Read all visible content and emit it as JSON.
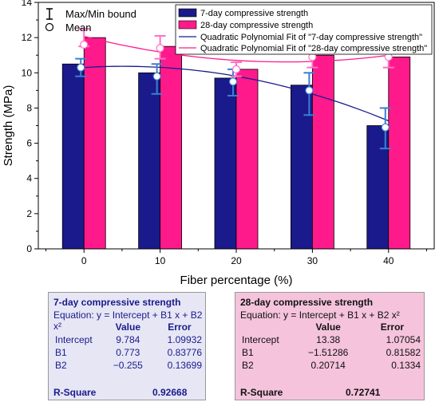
{
  "chart_data": {
    "type": "bar",
    "xlabel": "Fiber percentage (%)",
    "ylabel": "Strength (MPa)",
    "categories": [
      "0",
      "10",
      "20",
      "30",
      "40"
    ],
    "x": [
      0,
      10,
      20,
      30,
      40
    ],
    "ylim": [
      0,
      14
    ],
    "yticks": [
      "0",
      "2",
      "4",
      "6",
      "8",
      "10",
      "12",
      "14"
    ],
    "grid": false,
    "legend_position": "top-right",
    "legend_errorbar": [
      "Max/Min bound",
      "Mean"
    ],
    "series": [
      {
        "name": "7-day compressive strength",
        "color": "#1a1a8c",
        "values": [
          10.5,
          10.0,
          9.7,
          9.3,
          7.0
        ],
        "mean": [
          10.3,
          9.8,
          9.5,
          9.0,
          6.9
        ],
        "max": [
          10.8,
          10.5,
          10.2,
          10.0,
          8.0
        ],
        "min": [
          9.8,
          8.8,
          8.7,
          7.6,
          5.7
        ]
      },
      {
        "name": "28-day compressive strength",
        "color": "#ff1a8c",
        "values": [
          12.0,
          11.5,
          10.2,
          11.0,
          10.9
        ],
        "mean": [
          11.6,
          11.4,
          10.2,
          10.9,
          10.9
        ],
        "max": [
          12.5,
          12.1,
          10.6,
          11.7,
          11.6
        ],
        "min": [
          11.5,
          10.8,
          9.8,
          10.3,
          10.3
        ]
      }
    ],
    "fits": [
      {
        "name": "Quadratic Polynomial Fit of \"7-day compressive strength\"",
        "color": "#1a1a8c",
        "title": "7-day compressive strength",
        "equation": "Equation: y = Intercept + B1 x + B2 x²",
        "headers": [
          "Value",
          "Error"
        ],
        "rows": [
          {
            "label": "Intercept",
            "value": "9.784",
            "error": "1.09932"
          },
          {
            "label": "B1",
            "value": "0.773",
            "error": "0.83776"
          },
          {
            "label": "B2",
            "value": "−0.255",
            "error": "0.13699"
          }
        ],
        "r_square_label": "R-Square",
        "r_square": "0.92668"
      },
      {
        "name": "Quadratic Polynomial Fit of \"28-day compressive strength\"",
        "color": "#ff1a8c",
        "title": "28-day compressive strength",
        "equation": "Equation: y = Intercept + B1 x + B2 x²",
        "headers": [
          "Value",
          "Error"
        ],
        "rows": [
          {
            "label": "Intercept",
            "value": "13.38",
            "error": "1.07054"
          },
          {
            "label": "B1",
            "value": "−1.51286",
            "error": "0.81582"
          },
          {
            "label": "B2",
            "value": "0.20714",
            "error": "0.1334"
          }
        ],
        "r_square_label": "R-Square",
        "r_square": "0.72741"
      }
    ]
  }
}
